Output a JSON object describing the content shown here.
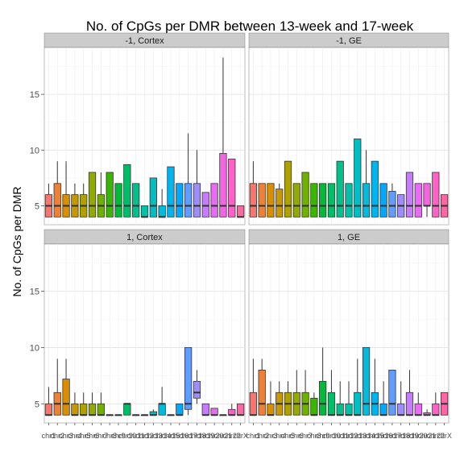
{
  "chart_data": {
    "type": "boxplot",
    "title": "No. of CpGs per DMR between 13-week and 17-week",
    "ylabel": "No. of CpGs per DMR",
    "xlabel": "",
    "ylim": [
      3.3,
      19.2
    ],
    "y_ticks": [
      5,
      10,
      15
    ],
    "grid": true,
    "categories": [
      "chr1",
      "chr2",
      "chr3",
      "chr4",
      "chr5",
      "chr6",
      "chr7",
      "chr8",
      "chr9",
      "chr10",
      "chr11",
      "chr12",
      "chr13",
      "chr14",
      "chr15",
      "chr16",
      "chr17",
      "chr18",
      "chr19",
      "chr20",
      "chr21",
      "chr22",
      "chrX"
    ],
    "category_colors": [
      "#F8766D",
      "#EC8239",
      "#DB8E00",
      "#C79800",
      "#AFA100",
      "#93AA00",
      "#6FB000",
      "#39B600",
      "#00BA38",
      "#00BE67",
      "#00C08B",
      "#00C1A9",
      "#00BFC4",
      "#00BBDB",
      "#00B4EF",
      "#00A9FF",
      "#619CFF",
      "#9F8CFF",
      "#C77CFF",
      "#E76BF3",
      "#F564E3",
      "#FF61C9",
      "#FF67A4"
    ],
    "panels": [
      {
        "strip": "-1, Cortex",
        "boxes": [
          {
            "q1": 4,
            "median": 5,
            "q3": 6,
            "lo": 4,
            "hi": 7
          },
          {
            "q1": 4,
            "median": 5,
            "q3": 7,
            "lo": 4,
            "hi": 9
          },
          {
            "q1": 4,
            "median": 5,
            "q3": 6,
            "lo": 4,
            "hi": 9
          },
          {
            "q1": 4,
            "median": 5,
            "q3": 6,
            "lo": 4,
            "hi": 7
          },
          {
            "q1": 4,
            "median": 5,
            "q3": 6,
            "lo": 4,
            "hi": 7
          },
          {
            "q1": 4,
            "median": 5,
            "q3": 8,
            "lo": 4,
            "hi": 8
          },
          {
            "q1": 4,
            "median": 5,
            "q3": 6,
            "lo": 4,
            "hi": 8
          },
          {
            "q1": 4,
            "median": 5,
            "q3": 8,
            "lo": 4,
            "hi": 8
          },
          {
            "q1": 4,
            "median": 5,
            "q3": 7,
            "lo": 4,
            "hi": 7
          },
          {
            "q1": 4,
            "median": 5,
            "q3": 8.7,
            "lo": 4,
            "hi": 8.7
          },
          {
            "q1": 4,
            "median": 5,
            "q3": 7,
            "lo": 4,
            "hi": 7
          },
          {
            "q1": 4,
            "median": 4,
            "q3": 5,
            "lo": 4,
            "hi": 5
          },
          {
            "q1": 4,
            "median": 5,
            "q3": 7.5,
            "lo": 4,
            "hi": 7.5
          },
          {
            "q1": 4,
            "median": 4,
            "q3": 5,
            "lo": 4,
            "hi": 6.5
          },
          {
            "q1": 4,
            "median": 5,
            "q3": 8.5,
            "lo": 4,
            "hi": 8.5
          },
          {
            "q1": 4,
            "median": 5,
            "q3": 7,
            "lo": 4,
            "hi": 7
          },
          {
            "q1": 4,
            "median": 5,
            "q3": 7,
            "lo": 4,
            "hi": 11.5
          },
          {
            "q1": 4,
            "median": 5,
            "q3": 7,
            "lo": 4,
            "hi": 10
          },
          {
            "q1": 4,
            "median": 5,
            "q3": 6.2,
            "lo": 4,
            "hi": 6.2
          },
          {
            "q1": 4,
            "median": 5,
            "q3": 7,
            "lo": 4,
            "hi": 7
          },
          {
            "q1": 4,
            "median": 5,
            "q3": 9.7,
            "lo": 4,
            "hi": 18.3
          },
          {
            "q1": 4,
            "median": 5,
            "q3": 9.2,
            "lo": 4,
            "hi": 9.2
          },
          {
            "q1": 4,
            "median": 4,
            "q3": 5,
            "lo": 4,
            "hi": 5
          }
        ]
      },
      {
        "strip": "-1, GE",
        "boxes": [
          {
            "q1": 4,
            "median": 5,
            "q3": 7,
            "lo": 4,
            "hi": 9
          },
          {
            "q1": 4,
            "median": 5,
            "q3": 7,
            "lo": 4,
            "hi": 7
          },
          {
            "q1": 4,
            "median": 5,
            "q3": 7,
            "lo": 4,
            "hi": 7
          },
          {
            "q1": 4,
            "median": 5,
            "q3": 6.5,
            "lo": 4,
            "hi": 7
          },
          {
            "q1": 4,
            "median": 5,
            "q3": 9,
            "lo": 4,
            "hi": 9
          },
          {
            "q1": 4,
            "median": 5,
            "q3": 7,
            "lo": 4,
            "hi": 7
          },
          {
            "q1": 4,
            "median": 5,
            "q3": 8,
            "lo": 4,
            "hi": 8
          },
          {
            "q1": 4,
            "median": 5,
            "q3": 7,
            "lo": 4,
            "hi": 7
          },
          {
            "q1": 4,
            "median": 5,
            "q3": 7,
            "lo": 4,
            "hi": 7
          },
          {
            "q1": 4,
            "median": 5,
            "q3": 7,
            "lo": 4,
            "hi": 7
          },
          {
            "q1": 4,
            "median": 5,
            "q3": 9,
            "lo": 4,
            "hi": 9
          },
          {
            "q1": 4,
            "median": 5,
            "q3": 7,
            "lo": 4,
            "hi": 7
          },
          {
            "q1": 4,
            "median": 5,
            "q3": 11,
            "lo": 4,
            "hi": 11
          },
          {
            "q1": 4,
            "median": 5,
            "q3": 7,
            "lo": 4,
            "hi": 10
          },
          {
            "q1": 4,
            "median": 5,
            "q3": 9,
            "lo": 4,
            "hi": 9
          },
          {
            "q1": 4,
            "median": 5,
            "q3": 7,
            "lo": 4,
            "hi": 7
          },
          {
            "q1": 4,
            "median": 5,
            "q3": 6.3,
            "lo": 4,
            "hi": 7
          },
          {
            "q1": 4,
            "median": 5,
            "q3": 6,
            "lo": 4,
            "hi": 6
          },
          {
            "q1": 4,
            "median": 5,
            "q3": 8,
            "lo": 4,
            "hi": 8
          },
          {
            "q1": 4,
            "median": 5,
            "q3": 7,
            "lo": 4,
            "hi": 7
          },
          {
            "q1": 5,
            "median": 5,
            "q3": 7,
            "lo": 4,
            "hi": 7
          },
          {
            "q1": 4,
            "median": 5,
            "q3": 8,
            "lo": 4,
            "hi": 8
          },
          {
            "q1": 4,
            "median": 5,
            "q3": 6,
            "lo": 4,
            "hi": 6
          }
        ]
      },
      {
        "strip": "1, Cortex",
        "boxes": [
          {
            "q1": 4,
            "median": 4,
            "q3": 5,
            "lo": 4,
            "hi": 6.5
          },
          {
            "q1": 4,
            "median": 5,
            "q3": 6,
            "lo": 4,
            "hi": 9
          },
          {
            "q1": 4,
            "median": 5,
            "q3": 7.2,
            "lo": 4,
            "hi": 9
          },
          {
            "q1": 4,
            "median": 4,
            "q3": 5,
            "lo": 4,
            "hi": 6
          },
          {
            "q1": 4,
            "median": 4,
            "q3": 5,
            "lo": 4,
            "hi": 6
          },
          {
            "q1": 4,
            "median": 4,
            "q3": 5,
            "lo": 4,
            "hi": 6
          },
          {
            "q1": 4,
            "median": 4,
            "q3": 5,
            "lo": 4,
            "hi": 6
          },
          {
            "q1": 4,
            "median": 4,
            "q3": 4,
            "lo": 4,
            "hi": 4
          },
          {
            "q1": 4,
            "median": 4,
            "q3": 4,
            "lo": 4,
            "hi": 4
          },
          {
            "q1": 4,
            "median": 5,
            "q3": 5,
            "lo": 4,
            "hi": 5
          },
          {
            "q1": 4,
            "median": 4,
            "q3": 4,
            "lo": 4,
            "hi": 4
          },
          {
            "q1": 4,
            "median": 4,
            "q3": 4,
            "lo": 4,
            "hi": 4
          },
          {
            "q1": 4,
            "median": 4,
            "q3": 4.3,
            "lo": 4,
            "hi": 4.5
          },
          {
            "q1": 4,
            "median": 5,
            "q3": 5,
            "lo": 4,
            "hi": 6.5
          },
          {
            "q1": 4,
            "median": 4,
            "q3": 4,
            "lo": 4,
            "hi": 4
          },
          {
            "q1": 4,
            "median": 4,
            "q3": 5,
            "lo": 4,
            "hi": 5
          },
          {
            "q1": 4.5,
            "median": 5,
            "q3": 10,
            "lo": 4,
            "hi": 10
          },
          {
            "q1": 5.5,
            "median": 6,
            "q3": 7,
            "lo": 5,
            "hi": 8
          },
          {
            "q1": 4,
            "median": 4,
            "q3": 5,
            "lo": 4,
            "hi": 5
          },
          {
            "q1": 4,
            "median": 4,
            "q3": 4.6,
            "lo": 4,
            "hi": 4.6
          },
          {
            "q1": 4,
            "median": 4,
            "q3": 4,
            "lo": 4,
            "hi": 4
          },
          {
            "q1": 4,
            "median": 4,
            "q3": 4.5,
            "lo": 4,
            "hi": 5
          },
          {
            "q1": 4,
            "median": 4,
            "q3": 5,
            "lo": 4,
            "hi": 5
          }
        ]
      },
      {
        "strip": "1, GE",
        "boxes": [
          {
            "q1": 4,
            "median": 4,
            "q3": 6,
            "lo": 4,
            "hi": 9
          },
          {
            "q1": 4,
            "median": 5,
            "q3": 8,
            "lo": 4,
            "hi": 9
          },
          {
            "q1": 4,
            "median": 4,
            "q3": 5,
            "lo": 4,
            "hi": 7
          },
          {
            "q1": 4,
            "median": 5,
            "q3": 6,
            "lo": 4,
            "hi": 7
          },
          {
            "q1": 4,
            "median": 5,
            "q3": 6,
            "lo": 4,
            "hi": 7
          },
          {
            "q1": 4,
            "median": 5,
            "q3": 6,
            "lo": 4,
            "hi": 8
          },
          {
            "q1": 4,
            "median": 5,
            "q3": 6,
            "lo": 4,
            "hi": 8
          },
          {
            "q1": 4,
            "median": 4,
            "q3": 5.5,
            "lo": 4,
            "hi": 6
          },
          {
            "q1": 4,
            "median": 5,
            "q3": 7,
            "lo": 4,
            "hi": 10
          },
          {
            "q1": 4,
            "median": 4,
            "q3": 6,
            "lo": 4,
            "hi": 8
          },
          {
            "q1": 4,
            "median": 4,
            "q3": 5,
            "lo": 4,
            "hi": 7
          },
          {
            "q1": 4,
            "median": 4,
            "q3": 5,
            "lo": 4,
            "hi": 7
          },
          {
            "q1": 4,
            "median": 4,
            "q3": 6,
            "lo": 4,
            "hi": 9
          },
          {
            "q1": 4,
            "median": 5,
            "q3": 10,
            "lo": 4,
            "hi": 10
          },
          {
            "q1": 4,
            "median": 5,
            "q3": 6,
            "lo": 4,
            "hi": 9
          },
          {
            "q1": 4,
            "median": 4,
            "q3": 5,
            "lo": 4,
            "hi": 7
          },
          {
            "q1": 4,
            "median": 5,
            "q3": 8,
            "lo": 4,
            "hi": 8
          },
          {
            "q1": 4,
            "median": 4,
            "q3": 5,
            "lo": 4,
            "hi": 7
          },
          {
            "q1": 4,
            "median": 4,
            "q3": 6,
            "lo": 4,
            "hi": 8
          },
          {
            "q1": 4,
            "median": 4,
            "q3": 5,
            "lo": 4,
            "hi": 6
          },
          {
            "q1": 4,
            "median": 4,
            "q3": 4.2,
            "lo": 4,
            "hi": 4.5
          },
          {
            "q1": 4,
            "median": 4,
            "q3": 5,
            "lo": 4,
            "hi": 6
          },
          {
            "q1": 4,
            "median": 5,
            "q3": 6,
            "lo": 4,
            "hi": 6
          }
        ]
      }
    ]
  }
}
